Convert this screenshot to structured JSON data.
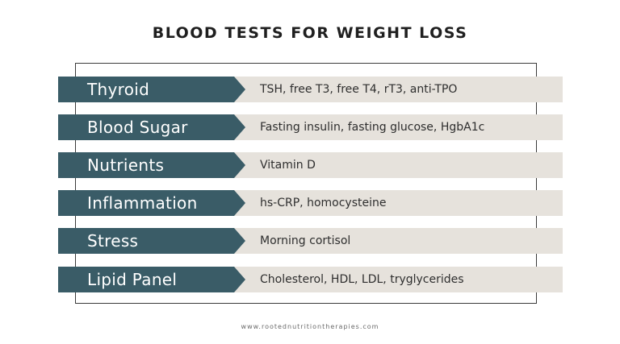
{
  "title": "BLOOD TESTS FOR WEIGHT LOSS",
  "rows": [
    {
      "label": "Thyroid",
      "value": "TSH, free T3, free T4, rT3, anti-TPO"
    },
    {
      "label": "Blood Sugar",
      "value": "Fasting insulin, fasting glucose, HgbA1c"
    },
    {
      "label": "Nutrients",
      "value": "Vitamin D"
    },
    {
      "label": "Inflammation",
      "value": "hs-CRP, homocysteine"
    },
    {
      "label": "Stress",
      "value": "Morning cortisol"
    },
    {
      "label": "Lipid Panel",
      "value": "Cholesterol, HDL, LDL, tryglycerides"
    }
  ],
  "footer": "www.rootednutritiontherapies.com",
  "colors": {
    "label_bg": "#3a5c67",
    "value_bg": "#e6e2dc"
  }
}
